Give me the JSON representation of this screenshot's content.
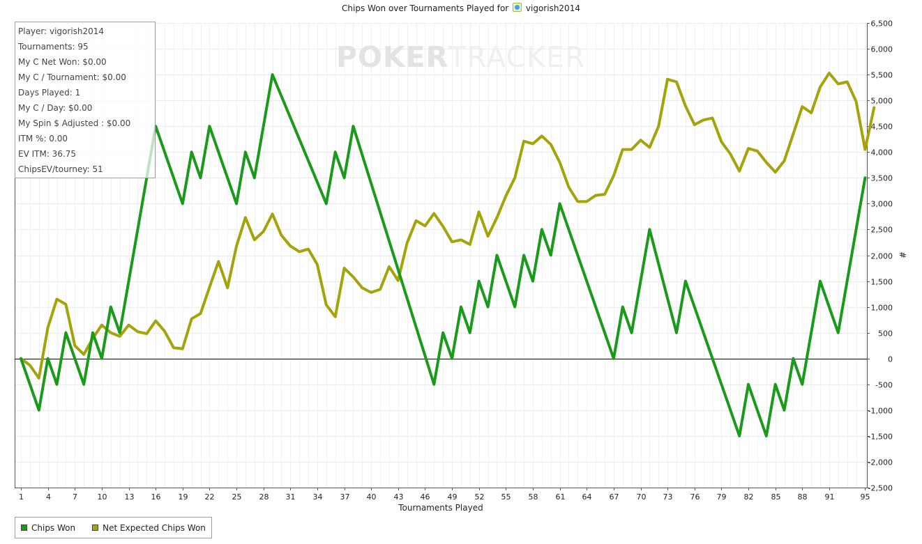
{
  "title": {
    "prefix": "Chips Won over Tournaments Played for",
    "player": "vigorish2014"
  },
  "info_box": [
    "Player: vigorish2014",
    "Tournaments: 95",
    "My C Net Won: $0.00",
    "My C / Tournament: $0.00",
    "Days Played: 1",
    "My C / Day: $0.00",
    "My Spin $ Adjusted : $0.00",
    "ITM %: 0.00",
    "EV ITM: 36.75",
    "ChipsEV/tourney: 51"
  ],
  "watermark": {
    "bold": "POKER",
    "light": "TRACKER"
  },
  "chart_data": {
    "type": "line",
    "title": "Chips Won over Tournaments Played for vigorish2014",
    "xlabel": "Tournaments Played",
    "ylabel": "#",
    "xlim": [
      0.3,
      95.2
    ],
    "ylim": [
      -2500,
      6500
    ],
    "y_ticks": [
      -2500,
      -2000,
      -1500,
      -1000,
      -500,
      0,
      500,
      1000,
      1500,
      2000,
      2500,
      3000,
      3500,
      4000,
      4500,
      5000,
      5500,
      6000,
      6500
    ],
    "y_tick_labels": [
      "-2,500",
      "-2,000",
      "-1,500",
      "-1,000",
      "-500",
      "0",
      "500",
      "1,000",
      "1,500",
      "2,000",
      "2,500",
      "3,000",
      "3,500",
      "4,000",
      "4,500",
      "5,000",
      "5,500",
      "6,000",
      "6,500"
    ],
    "x_ticks": [
      1,
      4,
      7,
      10,
      13,
      16,
      19,
      22,
      25,
      28,
      31,
      34,
      37,
      40,
      43,
      46,
      49,
      52,
      55,
      58,
      61,
      64,
      67,
      70,
      73,
      76,
      79,
      82,
      85,
      88,
      91,
      95
    ],
    "grid": true,
    "legend_position": "bottom-left",
    "series": [
      {
        "name": "Chips Won",
        "color": "#1a9a1a",
        "points": [
          [
            1,
            0
          ],
          [
            3,
            -1000
          ],
          [
            4,
            0
          ],
          [
            5,
            -500
          ],
          [
            6,
            500
          ],
          [
            8,
            -500
          ],
          [
            9,
            500
          ],
          [
            10,
            0
          ],
          [
            11,
            1000
          ],
          [
            12,
            500
          ],
          [
            16,
            4500
          ],
          [
            19,
            3000
          ],
          [
            20,
            4000
          ],
          [
            21,
            3500
          ],
          [
            22,
            4500
          ],
          [
            25,
            3000
          ],
          [
            26,
            4000
          ],
          [
            27,
            3500
          ],
          [
            29,
            5500
          ],
          [
            35,
            3000
          ],
          [
            36,
            4000
          ],
          [
            37,
            3500
          ],
          [
            38,
            4500
          ],
          [
            47,
            -500
          ],
          [
            48,
            500
          ],
          [
            49,
            0
          ],
          [
            50,
            1000
          ],
          [
            51,
            500
          ],
          [
            52,
            1500
          ],
          [
            53,
            1000
          ],
          [
            54,
            2000
          ],
          [
            56,
            1000
          ],
          [
            57,
            2000
          ],
          [
            58,
            1500
          ],
          [
            59,
            2500
          ],
          [
            60,
            2000
          ],
          [
            61,
            3000
          ],
          [
            67,
            0
          ],
          [
            68,
            1000
          ],
          [
            69,
            500
          ],
          [
            71,
            2500
          ],
          [
            74,
            500
          ],
          [
            75,
            1500
          ],
          [
            81,
            -1500
          ],
          [
            82,
            -500
          ],
          [
            84,
            -1500
          ],
          [
            85,
            -500
          ],
          [
            86,
            -1000
          ],
          [
            87,
            0
          ],
          [
            88,
            -500
          ],
          [
            90,
            1500
          ],
          [
            92,
            500
          ],
          [
            95,
            3500
          ]
        ]
      },
      {
        "name": "Net Expected Chips Won",
        "color": "#a3a30a",
        "points": [
          [
            1,
            0
          ],
          [
            2,
            -130
          ],
          [
            3,
            -380
          ],
          [
            4,
            600
          ],
          [
            5,
            1150
          ],
          [
            6,
            1050
          ],
          [
            7,
            250
          ],
          [
            8,
            80
          ],
          [
            9,
            390
          ],
          [
            10,
            650
          ],
          [
            11,
            500
          ],
          [
            12,
            430
          ],
          [
            13,
            650
          ],
          [
            14,
            520
          ],
          [
            15,
            480
          ],
          [
            16,
            730
          ],
          [
            17,
            530
          ],
          [
            18,
            210
          ],
          [
            19,
            190
          ],
          [
            20,
            770
          ],
          [
            21,
            870
          ],
          [
            22,
            1380
          ],
          [
            23,
            1880
          ],
          [
            24,
            1370
          ],
          [
            25,
            2180
          ],
          [
            26,
            2730
          ],
          [
            27,
            2300
          ],
          [
            28,
            2460
          ],
          [
            29,
            2800
          ],
          [
            30,
            2390
          ],
          [
            31,
            2180
          ],
          [
            32,
            2070
          ],
          [
            33,
            2120
          ],
          [
            34,
            1820
          ],
          [
            35,
            1040
          ],
          [
            36,
            810
          ],
          [
            37,
            1750
          ],
          [
            38,
            1580
          ],
          [
            39,
            1370
          ],
          [
            40,
            1280
          ],
          [
            41,
            1340
          ],
          [
            42,
            1780
          ],
          [
            43,
            1510
          ],
          [
            44,
            2240
          ],
          [
            45,
            2670
          ],
          [
            46,
            2570
          ],
          [
            47,
            2810
          ],
          [
            48,
            2560
          ],
          [
            49,
            2260
          ],
          [
            50,
            2300
          ],
          [
            51,
            2210
          ],
          [
            52,
            2840
          ],
          [
            53,
            2370
          ],
          [
            54,
            2730
          ],
          [
            55,
            3150
          ],
          [
            56,
            3500
          ],
          [
            57,
            4210
          ],
          [
            58,
            4160
          ],
          [
            59,
            4310
          ],
          [
            60,
            4150
          ],
          [
            61,
            3800
          ],
          [
            62,
            3320
          ],
          [
            63,
            3040
          ],
          [
            64,
            3040
          ],
          [
            65,
            3160
          ],
          [
            66,
            3180
          ],
          [
            67,
            3540
          ],
          [
            68,
            4050
          ],
          [
            69,
            4050
          ],
          [
            70,
            4230
          ],
          [
            71,
            4090
          ],
          [
            72,
            4500
          ],
          [
            73,
            5410
          ],
          [
            74,
            5360
          ],
          [
            75,
            4890
          ],
          [
            76,
            4530
          ],
          [
            77,
            4620
          ],
          [
            78,
            4660
          ],
          [
            79,
            4200
          ],
          [
            80,
            3960
          ],
          [
            81,
            3630
          ],
          [
            82,
            4070
          ],
          [
            83,
            4020
          ],
          [
            84,
            3800
          ],
          [
            85,
            3610
          ],
          [
            86,
            3830
          ],
          [
            87,
            4350
          ],
          [
            88,
            4880
          ],
          [
            89,
            4760
          ],
          [
            90,
            5260
          ],
          [
            91,
            5530
          ],
          [
            92,
            5320
          ],
          [
            93,
            5360
          ],
          [
            94,
            4980
          ],
          [
            95,
            4050
          ],
          [
            96,
            4860
          ]
        ]
      }
    ]
  }
}
